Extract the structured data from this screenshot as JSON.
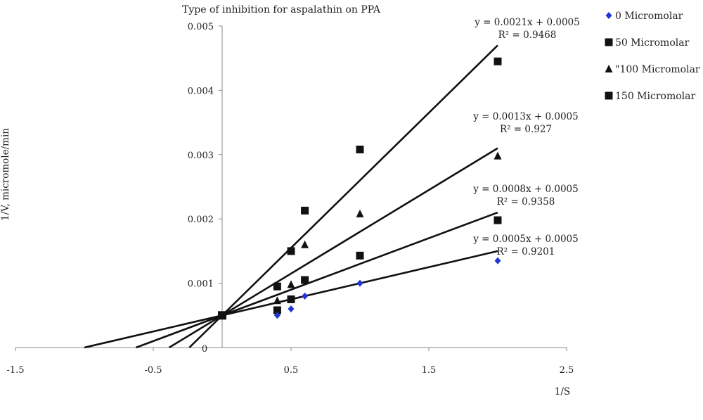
{
  "chart_data": {
    "type": "scatter",
    "title": "Type of inhibition for aspalathin on PPA",
    "xlabel": "1/S",
    "ylabel": "1/V, micromole/min",
    "xlim": [
      -1.5,
      2.5
    ],
    "ylim": [
      0,
      0.005
    ],
    "x_ticks": [
      "-1.5",
      "-0.5",
      "0.5",
      "1.5",
      "2.5"
    ],
    "y_ticks": [
      "0.001",
      "0.002",
      "0.003",
      "0.004",
      "0.005"
    ],
    "origin_label": "0",
    "legend_position": "right",
    "series": [
      {
        "name": "0 Micromolar",
        "marker": "diamond",
        "color": "#1f35d6",
        "x": [
          0.4,
          0.5,
          0.6,
          1.0,
          2.0
        ],
        "y": [
          0.0005,
          0.0006,
          0.0008,
          0.001,
          0.00135
        ],
        "trend": {
          "slope": 0.0005,
          "intercept": 0.0005,
          "equation": "y = 0.0005x + 0.0005",
          "r2": "R² = 0.9201"
        }
      },
      {
        "name": "50 Micromolar",
        "marker": "square",
        "color": "#111111",
        "x": [
          0.4,
          0.5,
          0.6,
          1.0,
          2.0
        ],
        "y": [
          0.00058,
          0.00075,
          0.00105,
          0.00143,
          0.00198
        ],
        "trend": {
          "slope": 0.0008,
          "intercept": 0.0005,
          "equation": "y = 0.0008x + 0.0005",
          "r2": "R² = 0.9358"
        }
      },
      {
        "name": "\"100 Micromolar",
        "marker": "triangle",
        "color": "#111111",
        "x": [
          0.4,
          0.5,
          0.6,
          1.0,
          2.0
        ],
        "y": [
          0.00073,
          0.00098,
          0.0016,
          0.00208,
          0.00298
        ],
        "trend": {
          "slope": 0.0013,
          "intercept": 0.0005,
          "equation": "y = 0.0013x + 0.0005",
          "r2": "R² = 0.927"
        }
      },
      {
        "name": "150 Micromolar",
        "marker": "square",
        "color": "#111111",
        "x": [
          0.4,
          0.5,
          0.6,
          1.0,
          2.0
        ],
        "y": [
          0.00095,
          0.0015,
          0.00213,
          0.00308,
          0.00445
        ],
        "trend": {
          "slope": 0.0021,
          "intercept": 0.0005,
          "equation": "y = 0.0021x + 0.0005",
          "r2": "R² = 0.9468"
        }
      }
    ]
  }
}
